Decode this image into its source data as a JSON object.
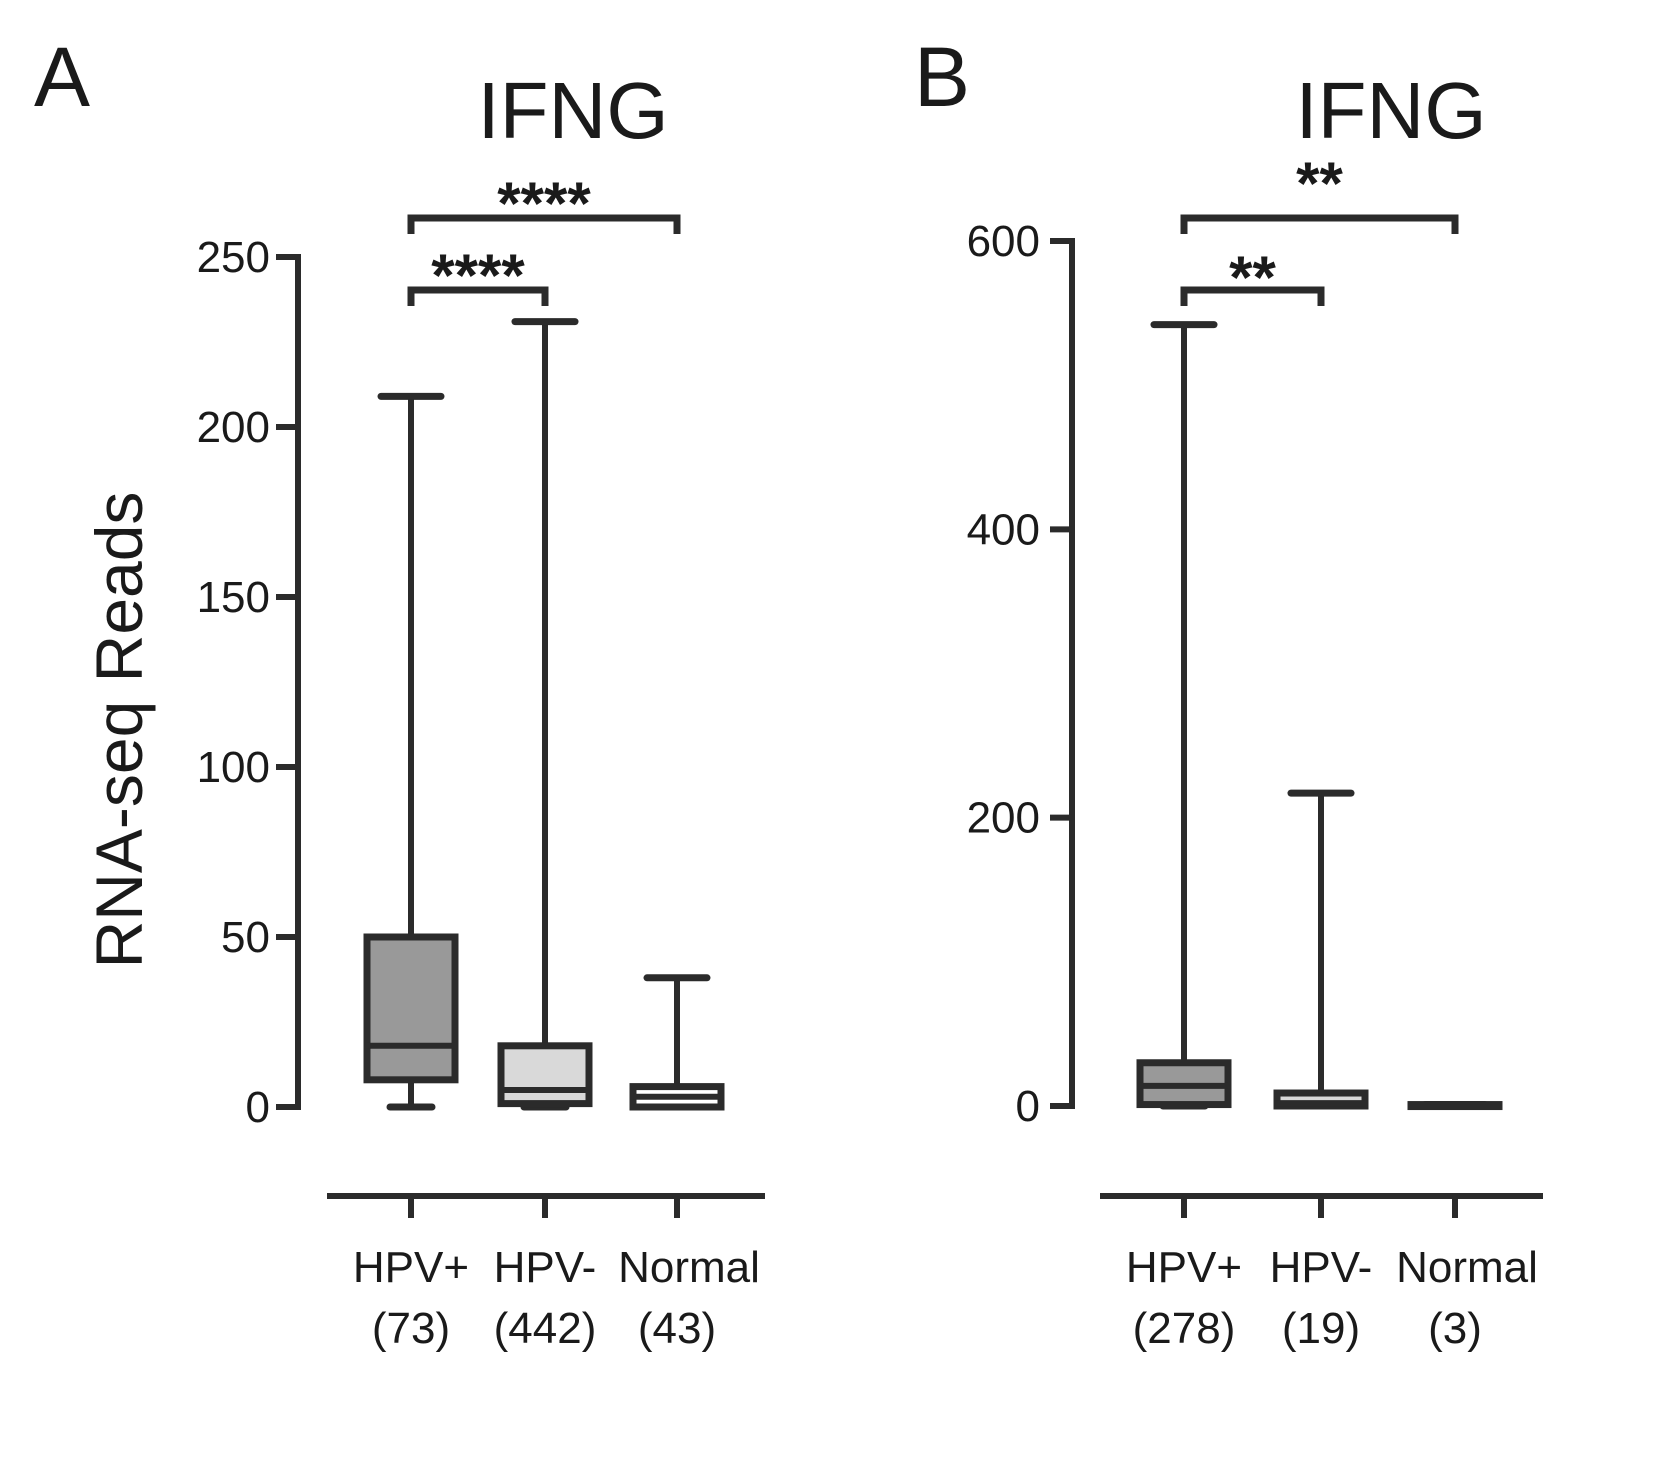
{
  "colors": {
    "ink": "#2b2b2b",
    "hpv_pos_fill": "#999999",
    "hpv_neg_fill": "#d9d9d9",
    "normal_fill": "#ffffff",
    "background": "#ffffff"
  },
  "chart_data": [
    {
      "type": "box",
      "panel": "A",
      "title": "IFNG",
      "ylabel": "RNA-seq Reads",
      "xlabel": "",
      "ylim": [
        0,
        250
      ],
      "yticks": [
        "0",
        "50",
        "100",
        "150",
        "200",
        "250"
      ],
      "grid": false,
      "categories": [
        {
          "label": "HPV+",
          "n_label": "(73)",
          "min": 0,
          "q1": 8,
          "median": 18,
          "q3": 50,
          "max": 209,
          "color": "#999999"
        },
        {
          "label": "HPV-",
          "n_label": "(442)",
          "min": 0,
          "q1": 1,
          "median": 5,
          "q3": 18,
          "max": 231,
          "color": "#d9d9d9"
        },
        {
          "label": "Normal",
          "n_label": "(43)",
          "min": 0,
          "q1": 0,
          "median": 3,
          "q3": 6,
          "max": 38,
          "color": "#ffffff"
        }
      ],
      "annotations": [
        {
          "from": 0,
          "to": 2,
          "text": "****",
          "level": 2
        },
        {
          "from": 0,
          "to": 1,
          "text": "****",
          "level": 1
        }
      ]
    },
    {
      "type": "box",
      "panel": "B",
      "title": "IFNG",
      "ylabel": "",
      "xlabel": "",
      "ylim": [
        0,
        600
      ],
      "yticks": [
        "0",
        "200",
        "400",
        "600"
      ],
      "grid": false,
      "categories": [
        {
          "label": "HPV+",
          "n_label": "(278)",
          "min": 0,
          "q1": 1,
          "median": 14,
          "q3": 30,
          "max": 542,
          "color": "#999999"
        },
        {
          "label": "HPV-",
          "n_label": "(19)",
          "min": 0,
          "q1": 0,
          "median": 2,
          "q3": 9,
          "max": 217,
          "color": "#d9d9d9"
        },
        {
          "label": "Normal",
          "n_label": "(3)",
          "min": 0,
          "q1": 0,
          "median": 0,
          "q3": 1,
          "max": 1,
          "color": "#ffffff"
        }
      ],
      "annotations": [
        {
          "from": 0,
          "to": 2,
          "text": "**",
          "level": 2
        },
        {
          "from": 0,
          "to": 1,
          "text": "**",
          "level": 1
        }
      ]
    }
  ]
}
